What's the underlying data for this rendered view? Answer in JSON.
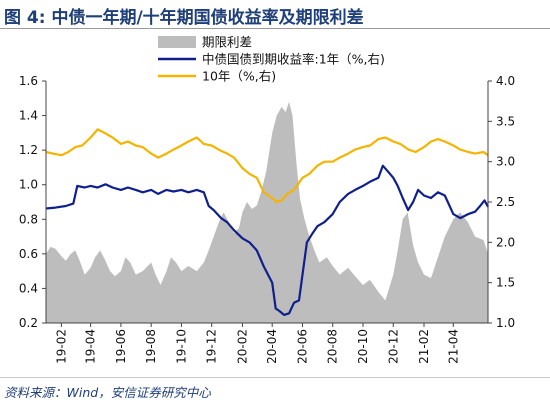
{
  "figure": {
    "title": "图 4:  中债一年期/十年期国债收益率及期限利差",
    "source": "资料来源：Wind，安信证券研究中心"
  },
  "chart_data": {
    "type": "area+line",
    "x_ticks": [
      "19-02",
      "19-04",
      "19-06",
      "19-08",
      "19-10",
      "19-12",
      "20-02",
      "20-04",
      "20-06",
      "20-08",
      "20-10",
      "20-12",
      "21-02",
      "21-04"
    ],
    "x_range": [
      "2019-01-01",
      "2021-06-10"
    ],
    "y_left": {
      "ticks": [
        "0.2",
        "0.4",
        "0.6",
        "0.8",
        "1.0",
        "1.2",
        "1.4",
        "1.6"
      ],
      "range": [
        0.2,
        1.6
      ]
    },
    "y_right": {
      "ticks": [
        "1.0",
        "1.5",
        "2.0",
        "2.5",
        "3.0",
        "3.5",
        "4.0"
      ],
      "range": [
        1.0,
        4.0
      ]
    },
    "legend": {
      "position": "top-center",
      "entries": [
        "期限利差",
        "中债国债到期收益率:1年（%,右)",
        "10年（%,右)"
      ]
    },
    "colors": {
      "spread": "#bdbdbd",
      "y1": "#0f1f8c",
      "y10": "#f5b400"
    },
    "series": [
      {
        "name": "期限利差",
        "axis": "left",
        "style": "area",
        "points": [
          [
            "2019-01-01",
            0.6
          ],
          [
            "2019-01-10",
            0.64
          ],
          [
            "2019-01-20",
            0.63
          ],
          [
            "2019-01-31",
            0.59
          ],
          [
            "2019-02-10",
            0.56
          ],
          [
            "2019-02-20",
            0.6
          ],
          [
            "2019-03-01",
            0.62
          ],
          [
            "2019-03-10",
            0.56
          ],
          [
            "2019-03-20",
            0.48
          ],
          [
            "2019-04-01",
            0.52
          ],
          [
            "2019-04-10",
            0.58
          ],
          [
            "2019-04-20",
            0.62
          ],
          [
            "2019-05-01",
            0.56
          ],
          [
            "2019-05-10",
            0.5
          ],
          [
            "2019-05-20",
            0.47
          ],
          [
            "2019-06-01",
            0.5
          ],
          [
            "2019-06-10",
            0.58
          ],
          [
            "2019-06-20",
            0.55
          ],
          [
            "2019-07-01",
            0.48
          ],
          [
            "2019-07-15",
            0.5
          ],
          [
            "2019-08-01",
            0.55
          ],
          [
            "2019-08-10",
            0.48
          ],
          [
            "2019-08-20",
            0.42
          ],
          [
            "2019-09-01",
            0.5
          ],
          [
            "2019-09-10",
            0.58
          ],
          [
            "2019-09-20",
            0.55
          ],
          [
            "2019-10-01",
            0.5
          ],
          [
            "2019-10-15",
            0.53
          ],
          [
            "2019-11-01",
            0.5
          ],
          [
            "2019-11-15",
            0.55
          ],
          [
            "2019-11-25",
            0.62
          ],
          [
            "2019-12-05",
            0.7
          ],
          [
            "2019-12-15",
            0.78
          ],
          [
            "2019-12-25",
            0.84
          ],
          [
            "2020-01-05",
            0.78
          ],
          [
            "2020-01-15",
            0.72
          ],
          [
            "2020-01-25",
            0.75
          ],
          [
            "2020-02-01",
            0.84
          ],
          [
            "2020-02-10",
            0.9
          ],
          [
            "2020-02-20",
            0.86
          ],
          [
            "2020-03-01",
            0.88
          ],
          [
            "2020-03-10",
            0.96
          ],
          [
            "2020-03-20",
            1.08
          ],
          [
            "2020-04-01",
            1.3
          ],
          [
            "2020-04-10",
            1.4
          ],
          [
            "2020-04-20",
            1.45
          ],
          [
            "2020-04-28",
            1.42
          ],
          [
            "2020-05-05",
            1.48
          ],
          [
            "2020-05-12",
            1.4
          ],
          [
            "2020-05-20",
            1.12
          ],
          [
            "2020-05-27",
            0.92
          ],
          [
            "2020-06-05",
            0.8
          ],
          [
            "2020-06-15",
            0.7
          ],
          [
            "2020-06-25",
            0.62
          ],
          [
            "2020-07-05",
            0.55
          ],
          [
            "2020-07-20",
            0.58
          ],
          [
            "2020-08-01",
            0.53
          ],
          [
            "2020-08-15",
            0.48
          ],
          [
            "2020-09-01",
            0.52
          ],
          [
            "2020-09-15",
            0.47
          ],
          [
            "2020-10-01",
            0.42
          ],
          [
            "2020-10-15",
            0.45
          ],
          [
            "2020-11-01",
            0.38
          ],
          [
            "2020-11-15",
            0.33
          ],
          [
            "2020-12-01",
            0.48
          ],
          [
            "2020-12-10",
            0.62
          ],
          [
            "2020-12-20",
            0.8
          ],
          [
            "2020-12-30",
            0.84
          ],
          [
            "2021-01-10",
            0.65
          ],
          [
            "2021-01-20",
            0.55
          ],
          [
            "2021-02-01",
            0.48
          ],
          [
            "2021-02-15",
            0.46
          ],
          [
            "2021-03-01",
            0.58
          ],
          [
            "2021-03-15",
            0.7
          ],
          [
            "2021-04-01",
            0.8
          ],
          [
            "2021-04-15",
            0.84
          ],
          [
            "2021-05-01",
            0.78
          ],
          [
            "2021-05-15",
            0.7
          ],
          [
            "2021-06-01",
            0.68
          ],
          [
            "2021-06-10",
            0.6
          ]
        ]
      },
      {
        "name": "中债国债到期收益率:1年（%,右)",
        "axis": "right",
        "style": "line",
        "points": [
          [
            "2019-01-01",
            2.42
          ],
          [
            "2019-01-20",
            2.43
          ],
          [
            "2019-02-10",
            2.45
          ],
          [
            "2019-02-25",
            2.48
          ],
          [
            "2019-03-05",
            2.7
          ],
          [
            "2019-03-20",
            2.68
          ],
          [
            "2019-04-01",
            2.7
          ],
          [
            "2019-04-15",
            2.68
          ],
          [
            "2019-05-01",
            2.72
          ],
          [
            "2019-05-15",
            2.68
          ],
          [
            "2019-06-01",
            2.65
          ],
          [
            "2019-06-15",
            2.68
          ],
          [
            "2019-07-01",
            2.65
          ],
          [
            "2019-07-15",
            2.62
          ],
          [
            "2019-08-01",
            2.65
          ],
          [
            "2019-08-15",
            2.6
          ],
          [
            "2019-09-01",
            2.65
          ],
          [
            "2019-09-15",
            2.63
          ],
          [
            "2019-10-01",
            2.65
          ],
          [
            "2019-10-15",
            2.62
          ],
          [
            "2019-11-01",
            2.65
          ],
          [
            "2019-11-15",
            2.62
          ],
          [
            "2019-11-25",
            2.45
          ],
          [
            "2019-12-05",
            2.4
          ],
          [
            "2019-12-20",
            2.3
          ],
          [
            "2020-01-01",
            2.25
          ],
          [
            "2020-01-15",
            2.15
          ],
          [
            "2020-02-01",
            2.05
          ],
          [
            "2020-02-15",
            2.0
          ],
          [
            "2020-03-01",
            1.9
          ],
          [
            "2020-03-15",
            1.7
          ],
          [
            "2020-04-01",
            1.5
          ],
          [
            "2020-04-08",
            1.18
          ],
          [
            "2020-04-15",
            1.15
          ],
          [
            "2020-04-25",
            1.1
          ],
          [
            "2020-05-05",
            1.12
          ],
          [
            "2020-05-15",
            1.25
          ],
          [
            "2020-05-25",
            1.28
          ],
          [
            "2020-06-01",
            1.6
          ],
          [
            "2020-06-10",
            2.0
          ],
          [
            "2020-06-20",
            2.1
          ],
          [
            "2020-07-01",
            2.2
          ],
          [
            "2020-07-15",
            2.25
          ],
          [
            "2020-08-01",
            2.35
          ],
          [
            "2020-08-15",
            2.5
          ],
          [
            "2020-09-01",
            2.6
          ],
          [
            "2020-09-15",
            2.65
          ],
          [
            "2020-10-01",
            2.7
          ],
          [
            "2020-10-15",
            2.75
          ],
          [
            "2020-11-01",
            2.8
          ],
          [
            "2020-11-10",
            2.95
          ],
          [
            "2020-11-20",
            2.88
          ],
          [
            "2020-12-01",
            2.8
          ],
          [
            "2020-12-10",
            2.7
          ],
          [
            "2020-12-20",
            2.55
          ],
          [
            "2020-12-31",
            2.4
          ],
          [
            "2021-01-10",
            2.5
          ],
          [
            "2021-01-20",
            2.65
          ],
          [
            "2021-02-01",
            2.58
          ],
          [
            "2021-02-15",
            2.55
          ],
          [
            "2021-03-01",
            2.62
          ],
          [
            "2021-03-15",
            2.58
          ],
          [
            "2021-04-01",
            2.35
          ],
          [
            "2021-04-15",
            2.3
          ],
          [
            "2021-05-01",
            2.35
          ],
          [
            "2021-05-15",
            2.38
          ],
          [
            "2021-05-25",
            2.45
          ],
          [
            "2021-06-03",
            2.52
          ],
          [
            "2021-06-10",
            2.44
          ]
        ]
      },
      {
        "name": "10年（%,右)",
        "axis": "right",
        "style": "line",
        "points": [
          [
            "2019-01-01",
            3.12
          ],
          [
            "2019-01-15",
            3.1
          ],
          [
            "2019-02-01",
            3.08
          ],
          [
            "2019-02-15",
            3.12
          ],
          [
            "2019-03-01",
            3.18
          ],
          [
            "2019-03-15",
            3.2
          ],
          [
            "2019-04-01",
            3.3
          ],
          [
            "2019-04-15",
            3.4
          ],
          [
            "2019-05-01",
            3.35
          ],
          [
            "2019-05-15",
            3.3
          ],
          [
            "2019-06-01",
            3.22
          ],
          [
            "2019-06-15",
            3.25
          ],
          [
            "2019-07-01",
            3.2
          ],
          [
            "2019-07-15",
            3.18
          ],
          [
            "2019-08-01",
            3.1
          ],
          [
            "2019-08-15",
            3.05
          ],
          [
            "2019-09-01",
            3.1
          ],
          [
            "2019-09-15",
            3.15
          ],
          [
            "2019-10-01",
            3.2
          ],
          [
            "2019-10-15",
            3.25
          ],
          [
            "2019-11-01",
            3.3
          ],
          [
            "2019-11-15",
            3.22
          ],
          [
            "2019-12-01",
            3.2
          ],
          [
            "2019-12-15",
            3.15
          ],
          [
            "2020-01-01",
            3.1
          ],
          [
            "2020-01-15",
            3.05
          ],
          [
            "2020-02-01",
            2.92
          ],
          [
            "2020-02-15",
            2.85
          ],
          [
            "2020-03-01",
            2.8
          ],
          [
            "2020-03-15",
            2.62
          ],
          [
            "2020-04-01",
            2.55
          ],
          [
            "2020-04-10",
            2.5
          ],
          [
            "2020-04-20",
            2.52
          ],
          [
            "2020-05-01",
            2.6
          ],
          [
            "2020-05-15",
            2.65
          ],
          [
            "2020-06-01",
            2.8
          ],
          [
            "2020-06-15",
            2.85
          ],
          [
            "2020-07-01",
            2.95
          ],
          [
            "2020-07-15",
            3.0
          ],
          [
            "2020-08-01",
            3.0
          ],
          [
            "2020-08-15",
            3.05
          ],
          [
            "2020-09-01",
            3.1
          ],
          [
            "2020-09-15",
            3.15
          ],
          [
            "2020-10-01",
            3.18
          ],
          [
            "2020-10-15",
            3.2
          ],
          [
            "2020-11-01",
            3.28
          ],
          [
            "2020-11-15",
            3.3
          ],
          [
            "2020-12-01",
            3.25
          ],
          [
            "2020-12-15",
            3.22
          ],
          [
            "2021-01-01",
            3.15
          ],
          [
            "2021-01-15",
            3.12
          ],
          [
            "2021-02-01",
            3.18
          ],
          [
            "2021-02-15",
            3.25
          ],
          [
            "2021-03-01",
            3.28
          ],
          [
            "2021-03-15",
            3.25
          ],
          [
            "2021-04-01",
            3.2
          ],
          [
            "2021-04-15",
            3.15
          ],
          [
            "2021-05-01",
            3.12
          ],
          [
            "2021-05-15",
            3.1
          ],
          [
            "2021-06-01",
            3.12
          ],
          [
            "2021-06-10",
            3.08
          ]
        ]
      }
    ]
  }
}
